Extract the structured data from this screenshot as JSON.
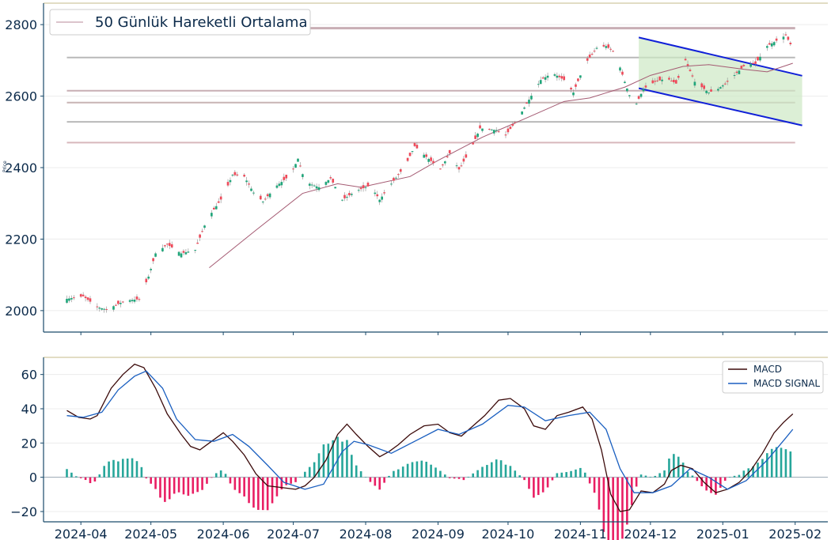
{
  "chart_data": [
    {
      "type": "candlestick",
      "legend": [
        "50 Günlük Hareketli Ortalama"
      ],
      "ylabel": "Price",
      "ylim": [
        1940,
        2860
      ],
      "yticks": [
        "2000",
        "2200",
        "2400",
        "2600",
        "2800"
      ],
      "x_range": [
        "2024-03-16",
        "2025-02-15"
      ],
      "horizontal_levels": [
        2790,
        2708,
        2615,
        2582,
        2528,
        2470
      ],
      "channel": {
        "upper": [
          [
            "2024-11-26",
            2764
          ],
          [
            "2025-02-04",
            2657
          ]
        ],
        "lower": [
          [
            "2024-11-26",
            2622
          ],
          [
            "2025-02-04",
            2518
          ]
        ]
      },
      "sma_points": [
        [
          "2024-05-26",
          2120
        ],
        [
          "2024-06-15",
          2225
        ],
        [
          "2024-07-05",
          2328
        ],
        [
          "2024-07-20",
          2355
        ],
        [
          "2024-07-30",
          2345
        ],
        [
          "2024-08-20",
          2375
        ],
        [
          "2024-09-01",
          2420
        ],
        [
          "2024-09-20",
          2485
        ],
        [
          "2024-10-10",
          2542
        ],
        [
          "2024-10-25",
          2585
        ],
        [
          "2024-11-05",
          2595
        ],
        [
          "2024-11-20",
          2625
        ],
        [
          "2024-12-01",
          2658
        ],
        [
          "2024-12-15",
          2683
        ],
        [
          "2024-12-26",
          2688
        ],
        [
          "2025-01-10",
          2675
        ],
        [
          "2025-01-20",
          2668
        ],
        [
          "2025-01-31",
          2692
        ]
      ],
      "price_points": [
        [
          "2024-03-26",
          2033
        ],
        [
          "2024-04-02",
          2040
        ],
        [
          "2024-04-08",
          2010
        ],
        [
          "2024-04-12",
          2003
        ],
        [
          "2024-04-20",
          2028
        ],
        [
          "2024-04-26",
          2032
        ],
        [
          "2024-04-30",
          2095
        ],
        [
          "2024-05-03",
          2160
        ],
        [
          "2024-05-08",
          2185
        ],
        [
          "2024-05-14",
          2160
        ],
        [
          "2024-05-20",
          2170
        ],
        [
          "2024-05-25",
          2255
        ],
        [
          "2024-06-01",
          2320
        ],
        [
          "2024-06-05",
          2380
        ],
        [
          "2024-06-10",
          2375
        ],
        [
          "2024-06-14",
          2330
        ],
        [
          "2024-06-18",
          2305
        ],
        [
          "2024-06-24",
          2350
        ],
        [
          "2024-06-30",
          2380
        ],
        [
          "2024-07-03",
          2425
        ],
        [
          "2024-07-06",
          2360
        ],
        [
          "2024-07-12",
          2345
        ],
        [
          "2024-07-17",
          2370
        ],
        [
          "2024-07-22",
          2310
        ],
        [
          "2024-07-28",
          2335
        ],
        [
          "2024-08-03",
          2350
        ],
        [
          "2024-08-07",
          2310
        ],
        [
          "2024-08-12",
          2355
        ],
        [
          "2024-08-18",
          2405
        ],
        [
          "2024-08-22",
          2460
        ],
        [
          "2024-08-27",
          2430
        ],
        [
          "2024-09-02",
          2395
        ],
        [
          "2024-09-06",
          2440
        ],
        [
          "2024-09-10",
          2395
        ],
        [
          "2024-09-15",
          2450
        ],
        [
          "2024-09-19",
          2510
        ],
        [
          "2024-09-26",
          2505
        ],
        [
          "2024-09-30",
          2490
        ],
        [
          "2024-10-05",
          2535
        ],
        [
          "2024-10-10",
          2590
        ],
        [
          "2024-10-15",
          2645
        ],
        [
          "2024-10-20",
          2665
        ],
        [
          "2024-10-25",
          2645
        ],
        [
          "2024-10-29",
          2610
        ],
        [
          "2024-11-03",
          2690
        ],
        [
          "2024-11-08",
          2735
        ],
        [
          "2024-11-12",
          2740
        ],
        [
          "2024-11-16",
          2720
        ],
        [
          "2024-11-20",
          2640
        ],
        [
          "2024-11-24",
          2565
        ],
        [
          "2024-11-28",
          2620
        ],
        [
          "2024-12-03",
          2640
        ],
        [
          "2024-12-08",
          2650
        ],
        [
          "2024-12-12",
          2635
        ],
        [
          "2024-12-16",
          2700
        ],
        [
          "2024-12-20",
          2640
        ],
        [
          "2024-12-26",
          2610
        ],
        [
          "2024-12-30",
          2620
        ],
        [
          "2025-01-03",
          2640
        ],
        [
          "2025-01-07",
          2665
        ],
        [
          "2025-01-11",
          2690
        ],
        [
          "2025-01-15",
          2690
        ],
        [
          "2025-01-20",
          2740
        ],
        [
          "2025-01-24",
          2755
        ],
        [
          "2025-01-28",
          2770
        ],
        [
          "2025-01-30",
          2745
        ]
      ]
    },
    {
      "type": "line",
      "series": [
        {
          "name": "MACD",
          "color": "#3b0a0a"
        },
        {
          "name": "MACD SIGNAL",
          "color": "#1a5fc0"
        }
      ],
      "ylim": [
        -26,
        70
      ],
      "yticks": [
        "−20",
        "0",
        "20",
        "40",
        "60"
      ],
      "xticks": [
        "2024-04",
        "2024-05",
        "2024-06",
        "2024-07",
        "2024-08",
        "2024-09",
        "2024-10",
        "2024-11",
        "2024-12",
        "2025-01",
        "2025-02"
      ],
      "macd_points": [
        [
          "2024-03-26",
          39
        ],
        [
          "2024-03-31",
          35
        ],
        [
          "2024-04-05",
          34
        ],
        [
          "2024-04-08",
          36
        ],
        [
          "2024-04-14",
          52
        ],
        [
          "2024-04-19",
          60
        ],
        [
          "2024-04-24",
          66
        ],
        [
          "2024-04-28",
          64
        ],
        [
          "2024-05-03",
          52
        ],
        [
          "2024-05-08",
          37
        ],
        [
          "2024-05-14",
          25
        ],
        [
          "2024-05-18",
          18
        ],
        [
          "2024-05-22",
          16
        ],
        [
          "2024-05-26",
          20
        ],
        [
          "2024-06-01",
          26
        ],
        [
          "2024-06-05",
          21
        ],
        [
          "2024-06-10",
          13
        ],
        [
          "2024-06-15",
          2
        ],
        [
          "2024-06-20",
          -5
        ],
        [
          "2024-06-26",
          -6
        ],
        [
          "2024-07-02",
          -7
        ],
        [
          "2024-07-06",
          -5
        ],
        [
          "2024-07-10",
          0
        ],
        [
          "2024-07-15",
          10
        ],
        [
          "2024-07-20",
          25
        ],
        [
          "2024-07-24",
          31
        ],
        [
          "2024-07-28",
          25
        ],
        [
          "2024-08-02",
          18
        ],
        [
          "2024-08-07",
          12
        ],
        [
          "2024-08-11",
          15
        ],
        [
          "2024-08-15",
          19
        ],
        [
          "2024-08-20",
          25
        ],
        [
          "2024-08-26",
          30
        ],
        [
          "2024-09-01",
          31
        ],
        [
          "2024-09-06",
          26
        ],
        [
          "2024-09-11",
          24
        ],
        [
          "2024-09-16",
          30
        ],
        [
          "2024-09-21",
          36
        ],
        [
          "2024-09-27",
          45
        ],
        [
          "2024-10-02",
          46
        ],
        [
          "2024-10-08",
          40
        ],
        [
          "2024-10-12",
          30
        ],
        [
          "2024-10-17",
          28
        ],
        [
          "2024-10-22",
          36
        ],
        [
          "2024-10-27",
          38
        ],
        [
          "2024-11-02",
          41
        ],
        [
          "2024-11-06",
          34
        ],
        [
          "2024-11-10",
          16
        ],
        [
          "2024-11-14",
          -10
        ],
        [
          "2024-11-18",
          -20
        ],
        [
          "2024-11-22",
          -19
        ],
        [
          "2024-11-27",
          -8
        ],
        [
          "2024-12-02",
          -9
        ],
        [
          "2024-12-07",
          -4
        ],
        [
          "2024-12-10",
          4
        ],
        [
          "2024-12-14",
          7
        ],
        [
          "2024-12-19",
          5
        ],
        [
          "2024-12-24",
          -3
        ],
        [
          "2024-12-29",
          -9
        ],
        [
          "2025-01-03",
          -7
        ],
        [
          "2025-01-08",
          -3
        ],
        [
          "2025-01-13",
          4
        ],
        [
          "2025-01-18",
          14
        ],
        [
          "2025-01-23",
          26
        ],
        [
          "2025-01-27",
          32
        ],
        [
          "2025-01-31",
          37
        ]
      ],
      "signal_points": [
        [
          "2024-03-26",
          36
        ],
        [
          "2024-04-02",
          35
        ],
        [
          "2024-04-10",
          38
        ],
        [
          "2024-04-17",
          51
        ],
        [
          "2024-04-24",
          59
        ],
        [
          "2024-04-29",
          62
        ],
        [
          "2024-05-06",
          52
        ],
        [
          "2024-05-12",
          34
        ],
        [
          "2024-05-20",
          22
        ],
        [
          "2024-05-28",
          21
        ],
        [
          "2024-06-05",
          25
        ],
        [
          "2024-06-12",
          18
        ],
        [
          "2024-06-20",
          7
        ],
        [
          "2024-06-27",
          -3
        ],
        [
          "2024-07-06",
          -7
        ],
        [
          "2024-07-14",
          -4
        ],
        [
          "2024-07-22",
          15
        ],
        [
          "2024-07-27",
          21
        ],
        [
          "2024-08-02",
          19
        ],
        [
          "2024-08-12",
          14
        ],
        [
          "2024-08-22",
          21
        ],
        [
          "2024-09-01",
          28
        ],
        [
          "2024-09-10",
          25
        ],
        [
          "2024-09-20",
          31
        ],
        [
          "2024-10-01",
          42
        ],
        [
          "2024-10-08",
          41
        ],
        [
          "2024-10-17",
          33
        ],
        [
          "2024-10-27",
          36
        ],
        [
          "2024-11-05",
          38
        ],
        [
          "2024-11-12",
          28
        ],
        [
          "2024-11-18",
          5
        ],
        [
          "2024-11-24",
          -9
        ],
        [
          "2024-12-02",
          -9
        ],
        [
          "2024-12-10",
          -5
        ],
        [
          "2024-12-18",
          5
        ],
        [
          "2024-12-26",
          0
        ],
        [
          "2025-01-03",
          -7
        ],
        [
          "2025-01-11",
          -2
        ],
        [
          "2025-01-20",
          10
        ],
        [
          "2025-01-28",
          23
        ],
        [
          "2025-01-31",
          28
        ]
      ]
    }
  ]
}
